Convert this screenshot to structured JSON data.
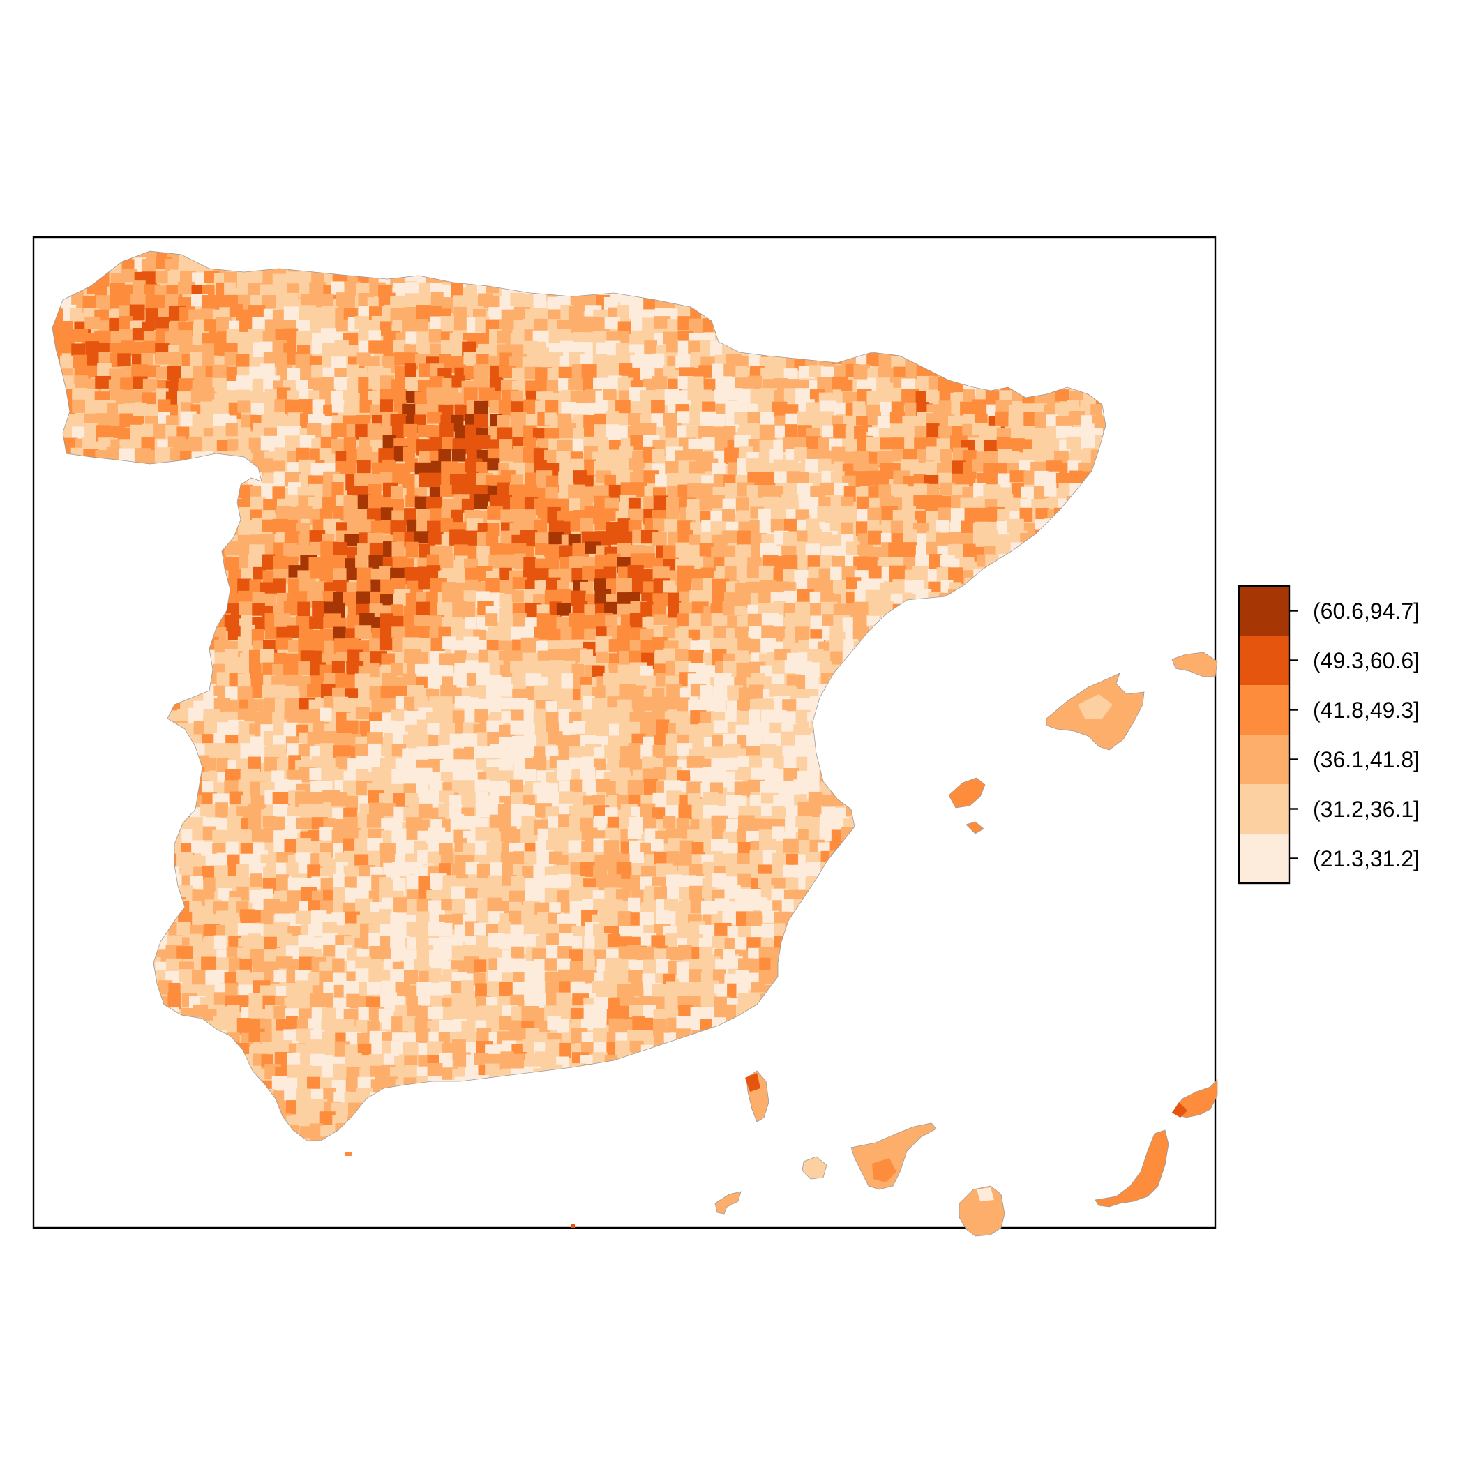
{
  "map": {
    "type": "choropleth",
    "region": "Spain (municipalities)",
    "palette": [
      "#fdebdc",
      "#fdd0a2",
      "#fdae6b",
      "#fd8d3c",
      "#e6550d",
      "#a63603"
    ],
    "boundary_color": "#9a9a9a",
    "frame": true
  },
  "legend": {
    "placement": "right",
    "classes": [
      {
        "label": "(60.6,94.7]",
        "color": "#a63603"
      },
      {
        "label": "(49.3,60.6]",
        "color": "#e6550d"
      },
      {
        "label": "(41.8,49.3]",
        "color": "#fd8d3c"
      },
      {
        "label": "(36.1,41.8]",
        "color": "#fdae6b"
      },
      {
        "label": "(31.2,36.1]",
        "color": "#fdd0a2"
      },
      {
        "label": "(21.3,31.2]",
        "color": "#fdebdc"
      }
    ]
  }
}
